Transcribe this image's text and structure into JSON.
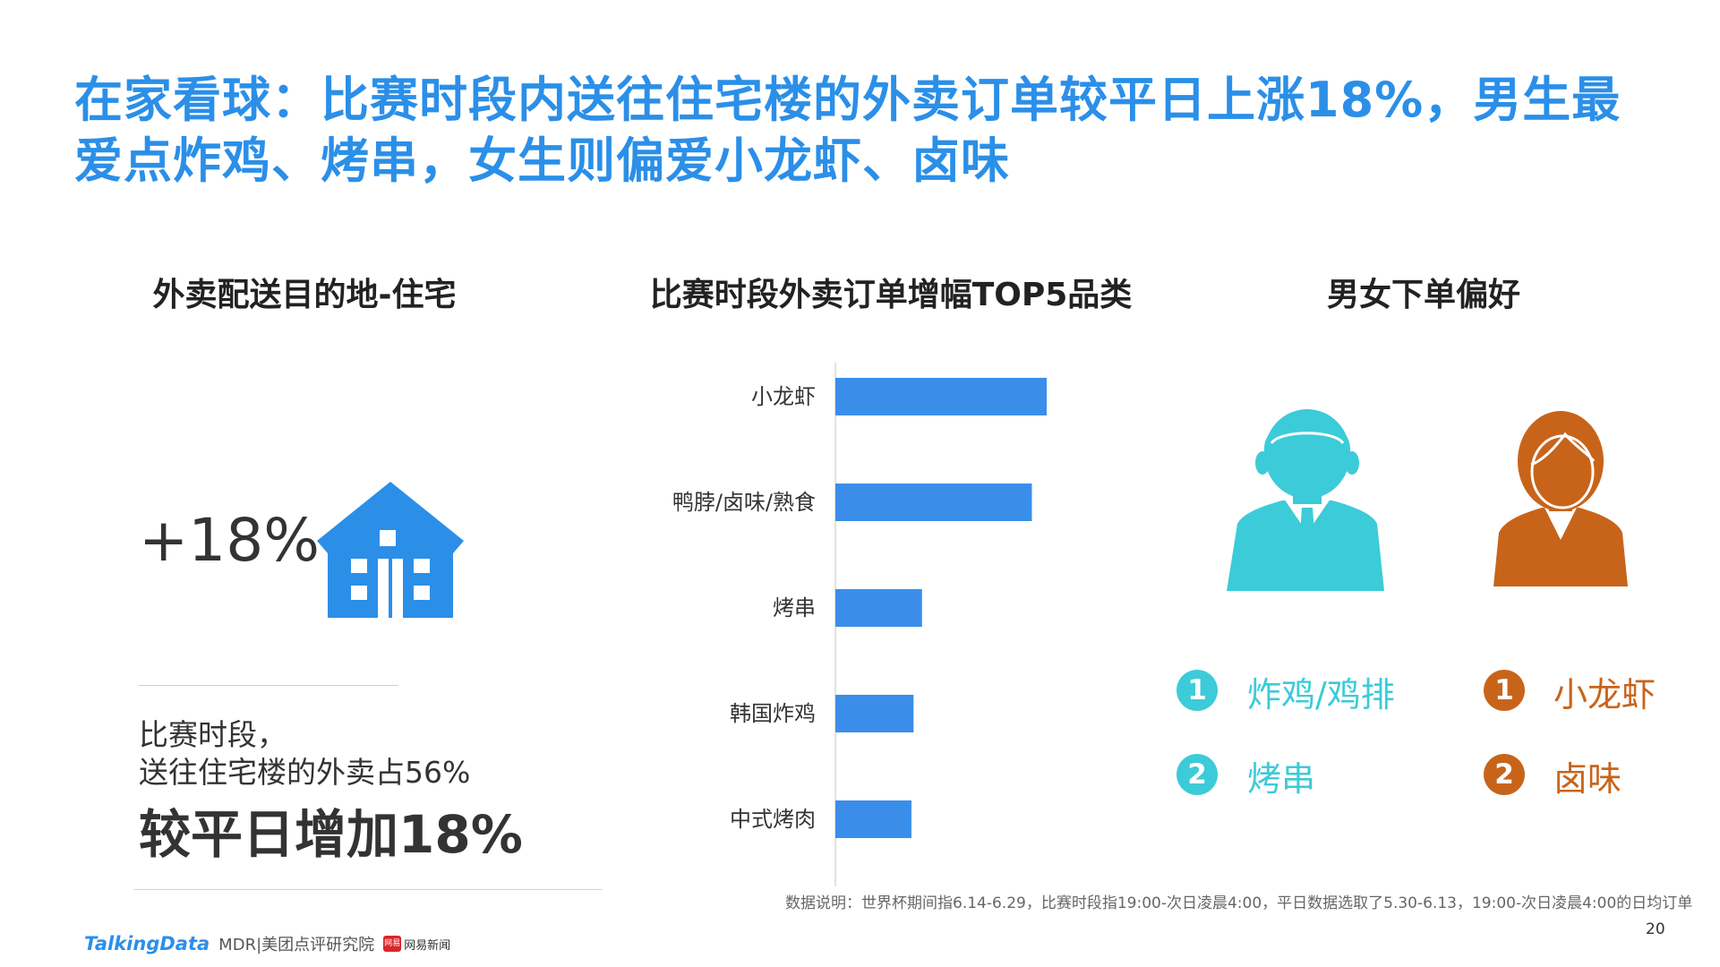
{
  "title": "在家看球：比赛时段内送往住宅楼的外卖订单较平日上涨18%，男生最爱点炸鸡、烤串，女生则偏爱小龙虾、卤味",
  "section1": {
    "heading": "外卖配送目的地-住宅",
    "stat": "+18%",
    "desc_line1": "比赛时段，",
    "desc_line2": "送往住宅楼的外卖占56%",
    "desc_strong": "较平日增加18%"
  },
  "section2": {
    "heading": "比赛时段外卖订单增幅TOP5品类"
  },
  "section3": {
    "heading": "男女下单偏好",
    "male": {
      "items": [
        {
          "rank": "1",
          "label": "炸鸡/鸡排"
        },
        {
          "rank": "2",
          "label": "烤串"
        }
      ]
    },
    "female": {
      "items": [
        {
          "rank": "1",
          "label": "小龙虾"
        },
        {
          "rank": "2",
          "label": "卤味"
        }
      ]
    }
  },
  "chart_data": {
    "type": "bar",
    "orientation": "horizontal",
    "categories": [
      "小龙虾",
      "鸭脖/卤味/熟食",
      "烤串",
      "韩国炸鸡",
      "中式烤肉"
    ],
    "values": [
      100,
      93,
      41,
      37,
      36
    ],
    "xlim": [
      0,
      100
    ],
    "title": "比赛时段外卖订单增幅TOP5品类",
    "grid": false,
    "bar_color": "#3A8EEA"
  },
  "footnote": "数据说明：世界杯期间指6.14-6.29，比赛时段指19:00-次日凌晨4:00，平日数据选取了5.30-6.13，19:00-次日凌晨4:00的日均订单",
  "page_number": "20",
  "logos": {
    "talkingdata": "TalkingData",
    "mdr": "MDR|美团点评研究院",
    "netease_mark": "网易",
    "netease": "网易新闻"
  },
  "colors": {
    "title": "#2B8FE8",
    "house": "#2B8FE8",
    "male": "#3CCBD8",
    "female": "#C8641A"
  },
  "icons": {
    "house": "house-icon",
    "male": "male-avatar-icon",
    "female": "female-avatar-icon"
  }
}
